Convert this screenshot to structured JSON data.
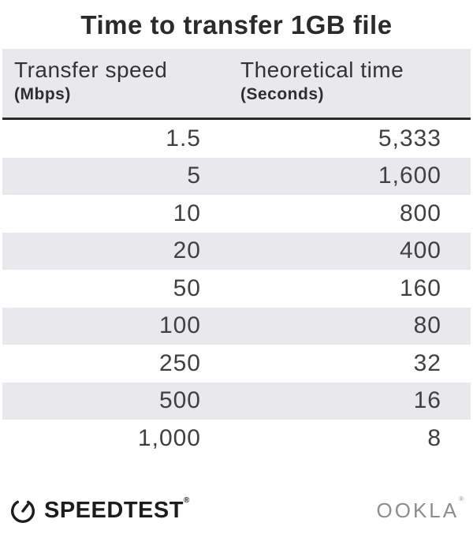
{
  "title": "Time to transfer 1GB file",
  "table": {
    "columns": [
      {
        "label": "Transfer speed",
        "unit": "(Mbps)"
      },
      {
        "label": "Theoretical time",
        "unit": "(Seconds)"
      }
    ],
    "rows": [
      [
        "1.5",
        "5,333"
      ],
      [
        "5",
        "1,600"
      ],
      [
        "10",
        "800"
      ],
      [
        "20",
        "400"
      ],
      [
        "50",
        "160"
      ],
      [
        "100",
        "80"
      ],
      [
        "250",
        "32"
      ],
      [
        "500",
        "16"
      ],
      [
        "1,000",
        "8"
      ]
    ]
  },
  "footer": {
    "speedtest_label": "SPEEDTEST",
    "speedtest_reg": "®",
    "ookla_label": "OOKLA",
    "ookla_reg": "®"
  },
  "icons": {
    "speedtest_gauge": "gauge-icon"
  },
  "colors": {
    "stripe": "#e9e8ec",
    "header_bg": "#e9e8ec",
    "header_border": "#2b2b2b",
    "title_text": "#2b2b2b",
    "data_text": "#404040",
    "speedtest_text": "#1d1d1d",
    "ookla_text": "#8d8d8d"
  },
  "chart_data": {
    "type": "table",
    "title": "Time to transfer 1GB file",
    "columns": [
      "Transfer speed (Mbps)",
      "Theoretical time (Seconds)"
    ],
    "rows": [
      [
        1.5,
        5333
      ],
      [
        5,
        1600
      ],
      [
        10,
        800
      ],
      [
        20,
        400
      ],
      [
        50,
        160
      ],
      [
        100,
        80
      ],
      [
        250,
        32
      ],
      [
        500,
        16
      ],
      [
        1000,
        8
      ]
    ],
    "layout": {
      "striped_rows": true,
      "first_data_row_background": "white",
      "numeric_alignment": "right"
    }
  }
}
